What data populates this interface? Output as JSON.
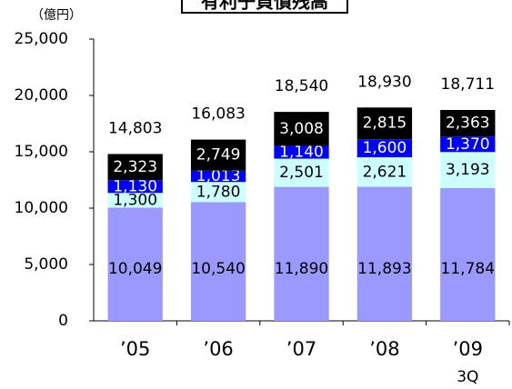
{
  "chart_data": {
    "type": "stacked_bar",
    "title": "有利子負債残高",
    "y_label": "（億円）",
    "categories": [
      "’05",
      "’06",
      "’07",
      "’08",
      "’09"
    ],
    "period_note": "3Q",
    "series": [
      {
        "color": "#9999ff",
        "label_color": "#000000",
        "values": [
          10049,
          10540,
          11890,
          11893,
          11784
        ],
        "value_labels": [
          "10,049",
          "10,540",
          "11,890",
          "11,893",
          "11,784"
        ]
      },
      {
        "color": "#ccffff",
        "label_color": "#000000",
        "values": [
          1300,
          1780,
          2501,
          2621,
          3193
        ],
        "value_labels": [
          "1,300",
          "1,780",
          "2,501",
          "2,621",
          "3,193"
        ]
      },
      {
        "color": "#0000ff",
        "label_color": "#ffffff",
        "values": [
          1130,
          1013,
          1140,
          1600,
          1370
        ],
        "value_labels": [
          "1,130",
          "1,013",
          "1,140",
          "1,600",
          "1,370"
        ]
      },
      {
        "color": "#000000",
        "label_color": "#ffffff",
        "values": [
          2323,
          2749,
          3008,
          2815,
          2363
        ],
        "value_labels": [
          "2,323",
          "2,749",
          "3,008",
          "2,815",
          "2,363"
        ]
      }
    ],
    "totals": [
      14803,
      16083,
      18540,
      18930,
      18711
    ],
    "totals_labels": [
      "14,803",
      "16,083",
      "18,540",
      "18,930",
      "18,711"
    ],
    "ylim": [
      0,
      25000
    ],
    "yticks": [
      0,
      {
        "value": 5000,
        "label": "5,000"
      },
      {
        "value": 10000,
        "label": "10,000"
      },
      {
        "value": 15000,
        "label": "15,000"
      },
      {
        "value": 20000,
        "label": "20,000"
      },
      {
        "value": 25000,
        "label": "25,000"
      }
    ]
  }
}
